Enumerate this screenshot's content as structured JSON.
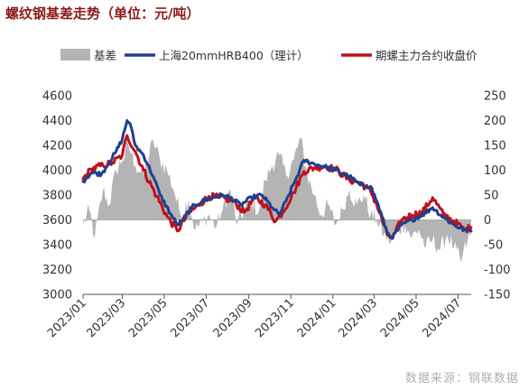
{
  "title": "螺纹钢基差走势（单位：元/吨）",
  "source": "数据来源：钢联数据",
  "chart_data": {
    "type": "line",
    "legend": [
      "基差",
      "上海20mmHRB400（理计）",
      "期螺主力合约收盘价"
    ],
    "x_tick_labels": [
      "2023/01",
      "2023/03",
      "2023/05",
      "2023/07",
      "2023/09",
      "2023/11",
      "2024/01",
      "2024/03",
      "2024/05",
      "2024/07"
    ],
    "y_left": {
      "ticks": [
        3000,
        3200,
        3400,
        3600,
        3800,
        4000,
        4200,
        4400,
        4600
      ],
      "range": [
        3000,
        4600
      ]
    },
    "y_right": {
      "ticks": [
        -150,
        -100,
        -50,
        0,
        50,
        100,
        150,
        200,
        250
      ],
      "range": [
        -150,
        250
      ]
    },
    "colors": {
      "basis": "#b4b4b4",
      "spot": "#1f3f8f",
      "futures": "#c0101a"
    },
    "x_start": "2023-01-03",
    "x_end": "2024-07-20",
    "spot_keypoints": [
      [
        "2023-01-03",
        3910
      ],
      [
        "2023-01-15",
        3980
      ],
      [
        "2023-01-30",
        3970
      ],
      [
        "2023-02-05",
        4020
      ],
      [
        "2023-02-20",
        4150
      ],
      [
        "2023-03-01",
        4250
      ],
      [
        "2023-03-08",
        4400
      ],
      [
        "2023-03-12",
        4380
      ],
      [
        "2023-03-20",
        4200
      ],
      [
        "2023-04-01",
        4120
      ],
      [
        "2023-04-15",
        3950
      ],
      [
        "2023-04-25",
        3800
      ],
      [
        "2023-05-10",
        3650
      ],
      [
        "2023-05-20",
        3560
      ],
      [
        "2023-05-28",
        3600
      ],
      [
        "2023-06-10",
        3700
      ],
      [
        "2023-06-25",
        3750
      ],
      [
        "2023-07-10",
        3780
      ],
      [
        "2023-07-25",
        3800
      ],
      [
        "2023-08-05",
        3780
      ],
      [
        "2023-08-20",
        3720
      ],
      [
        "2023-09-05",
        3780
      ],
      [
        "2023-09-20",
        3800
      ],
      [
        "2023-10-05",
        3700
      ],
      [
        "2023-10-15",
        3640
      ],
      [
        "2023-10-25",
        3750
      ],
      [
        "2023-11-10",
        3950
      ],
      [
        "2023-11-20",
        4080
      ],
      [
        "2023-12-05",
        4050
      ],
      [
        "2023-12-20",
        4030
      ],
      [
        "2024-01-05",
        4000
      ],
      [
        "2024-01-25",
        3950
      ],
      [
        "2024-02-10",
        3880
      ],
      [
        "2024-02-25",
        3870
      ],
      [
        "2024-03-05",
        3750
      ],
      [
        "2024-03-20",
        3500
      ],
      [
        "2024-03-28",
        3460
      ],
      [
        "2024-04-10",
        3560
      ],
      [
        "2024-04-25",
        3600
      ],
      [
        "2024-05-10",
        3640
      ],
      [
        "2024-05-25",
        3700
      ],
      [
        "2024-06-10",
        3620
      ],
      [
        "2024-06-25",
        3560
      ],
      [
        "2024-07-10",
        3520
      ],
      [
        "2024-07-20",
        3510
      ]
    ],
    "futures_keypoints": [
      [
        "2023-01-03",
        3930
      ],
      [
        "2023-01-15",
        4010
      ],
      [
        "2023-02-01",
        4040
      ],
      [
        "2023-02-15",
        4060
      ],
      [
        "2023-03-01",
        4120
      ],
      [
        "2023-03-08",
        4280
      ],
      [
        "2023-03-20",
        4150
      ],
      [
        "2023-04-01",
        4000
      ],
      [
        "2023-04-20",
        3790
      ],
      [
        "2023-05-05",
        3630
      ],
      [
        "2023-05-20",
        3510
      ],
      [
        "2023-06-05",
        3650
      ],
      [
        "2023-06-20",
        3720
      ],
      [
        "2023-07-05",
        3790
      ],
      [
        "2023-07-20",
        3780
      ],
      [
        "2023-08-10",
        3750
      ],
      [
        "2023-08-25",
        3660
      ],
      [
        "2023-09-10",
        3780
      ],
      [
        "2023-09-25",
        3720
      ],
      [
        "2023-10-10",
        3590
      ],
      [
        "2023-10-20",
        3660
      ],
      [
        "2023-11-05",
        3820
      ],
      [
        "2023-11-20",
        3990
      ],
      [
        "2023-12-05",
        4020
      ],
      [
        "2023-12-20",
        4030
      ],
      [
        "2024-01-05",
        4010
      ],
      [
        "2024-01-25",
        3920
      ],
      [
        "2024-02-10",
        3900
      ],
      [
        "2024-02-25",
        3830
      ],
      [
        "2024-03-05",
        3720
      ],
      [
        "2024-03-20",
        3480
      ],
      [
        "2024-03-28",
        3450
      ],
      [
        "2024-04-10",
        3600
      ],
      [
        "2024-04-25",
        3640
      ],
      [
        "2024-05-10",
        3660
      ],
      [
        "2024-05-25",
        3780
      ],
      [
        "2024-06-10",
        3640
      ],
      [
        "2024-06-25",
        3590
      ],
      [
        "2024-07-10",
        3520
      ],
      [
        "2024-07-20",
        3540
      ]
    ],
    "basis_keypoints": [
      [
        "2023-01-03",
        -10
      ],
      [
        "2023-01-12",
        20
      ],
      [
        "2023-01-20",
        -35
      ],
      [
        "2023-02-01",
        60
      ],
      [
        "2023-02-10",
        30
      ],
      [
        "2023-02-20",
        100
      ],
      [
        "2023-03-01",
        120
      ],
      [
        "2023-03-10",
        150
      ],
      [
        "2023-03-20",
        110
      ],
      [
        "2023-04-01",
        90
      ],
      [
        "2023-04-15",
        160
      ],
      [
        "2023-04-25",
        120
      ],
      [
        "2023-05-05",
        100
      ],
      [
        "2023-05-15",
        60
      ],
      [
        "2023-05-25",
        10
      ],
      [
        "2023-06-05",
        40
      ],
      [
        "2023-06-15",
        -20
      ],
      [
        "2023-06-25",
        -5
      ],
      [
        "2023-07-05",
        10
      ],
      [
        "2023-07-15",
        -15
      ],
      [
        "2023-07-25",
        20
      ],
      [
        "2023-08-05",
        60
      ],
      [
        "2023-08-15",
        -10
      ],
      [
        "2023-08-25",
        20
      ],
      [
        "2023-09-05",
        40
      ],
      [
        "2023-09-15",
        15
      ],
      [
        "2023-09-25",
        80
      ],
      [
        "2023-10-05",
        110
      ],
      [
        "2023-10-15",
        130
      ],
      [
        "2023-10-25",
        90
      ],
      [
        "2023-11-05",
        120
      ],
      [
        "2023-11-15",
        165
      ],
      [
        "2023-11-25",
        90
      ],
      [
        "2023-12-05",
        50
      ],
      [
        "2023-12-15",
        10
      ],
      [
        "2023-12-25",
        30
      ],
      [
        "2024-01-05",
        -10
      ],
      [
        "2024-01-15",
        20
      ],
      [
        "2024-01-25",
        60
      ],
      [
        "2024-02-05",
        30
      ],
      [
        "2024-02-15",
        50
      ],
      [
        "2024-02-25",
        10
      ],
      [
        "2024-03-05",
        0
      ],
      [
        "2024-03-15",
        -30
      ],
      [
        "2024-03-25",
        -45
      ],
      [
        "2024-04-05",
        -20
      ],
      [
        "2024-04-15",
        -10
      ],
      [
        "2024-04-25",
        -35
      ],
      [
        "2024-05-05",
        -20
      ],
      [
        "2024-05-15",
        -55
      ],
      [
        "2024-05-25",
        -40
      ],
      [
        "2024-06-05",
        -60
      ],
      [
        "2024-06-15",
        -30
      ],
      [
        "2024-06-25",
        -55
      ],
      [
        "2024-07-05",
        -85
      ],
      [
        "2024-07-15",
        -40
      ],
      [
        "2024-07-20",
        -30
      ]
    ]
  }
}
